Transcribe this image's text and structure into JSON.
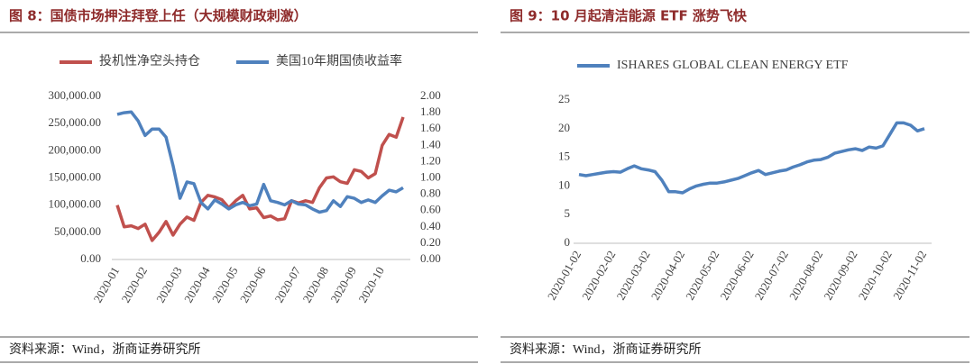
{
  "chart_data": [
    {
      "type": "line",
      "title": "图 8：国债市场押注拜登上任（大规模财政刺激）",
      "source": "资料来源：Wind，浙商证券研究所",
      "legend": "top",
      "categories": [
        "2020-01",
        null,
        null,
        null,
        "2020-02",
        null,
        null,
        null,
        null,
        "2020-03",
        null,
        null,
        null,
        "2020-04",
        null,
        null,
        null,
        "2020-05",
        null,
        null,
        null,
        "2020-06",
        null,
        null,
        null,
        null,
        "2020-07",
        null,
        null,
        null,
        "2020-08",
        null,
        null,
        null,
        "2020-09",
        null,
        null,
        null,
        "2020-10",
        null,
        null,
        null
      ],
      "series": [
        {
          "name": "投机性净空头持仓",
          "color": "#c0504d",
          "axis": "y",
          "values": [
            100000,
            60000,
            62000,
            57000,
            65000,
            35000,
            50000,
            70000,
            45000,
            65000,
            78000,
            72000,
            105000,
            118000,
            115000,
            110000,
            95000,
            108000,
            118000,
            93000,
            95000,
            77000,
            80000,
            73000,
            75000,
            108000,
            104000,
            108000,
            105000,
            132000,
            150000,
            152000,
            143000,
            140000,
            165000,
            162000,
            150000,
            158000,
            210000,
            230000,
            225000,
            262000
          ]
        },
        {
          "name": "美国10年期国债收益率",
          "color": "#4f81bd",
          "axis": "y2",
          "values": [
            1.78,
            1.8,
            1.81,
            1.7,
            1.52,
            1.6,
            1.6,
            1.5,
            1.15,
            0.75,
            0.95,
            0.93,
            0.7,
            0.62,
            0.73,
            0.68,
            0.62,
            0.67,
            0.7,
            0.66,
            0.68,
            0.92,
            0.72,
            0.7,
            0.67,
            0.72,
            0.68,
            0.67,
            0.62,
            0.58,
            0.6,
            0.72,
            0.65,
            0.77,
            0.75,
            0.7,
            0.73,
            0.7,
            0.78,
            0.85,
            0.83,
            0.88
          ]
        }
      ],
      "ylim": [
        0,
        300000
      ],
      "yticks": [
        {
          "value": 0,
          "label": "0.00"
        },
        {
          "value": 50000,
          "label": "50,000.00"
        },
        {
          "value": 100000,
          "label": "100,000.00"
        },
        {
          "value": 150000,
          "label": "150,000.00"
        },
        {
          "value": 200000,
          "label": "200,000.00"
        },
        {
          "value": 250000,
          "label": "250,000.00"
        },
        {
          "value": 300000,
          "label": "300,000.00"
        }
      ],
      "y2lim": [
        0,
        2
      ],
      "y2ticks": [
        {
          "value": 0,
          "label": "0.00"
        },
        {
          "value": 0.2,
          "label": "0.20"
        },
        {
          "value": 0.4,
          "label": "0.40"
        },
        {
          "value": 0.6,
          "label": "0.60"
        },
        {
          "value": 0.8,
          "label": "0.80"
        },
        {
          "value": 1,
          "label": "1.00"
        },
        {
          "value": 1.2,
          "label": "1.20"
        },
        {
          "value": 1.4,
          "label": "1.40"
        },
        {
          "value": 1.6,
          "label": "1.60"
        },
        {
          "value": 1.8,
          "label": "1.80"
        },
        {
          "value": 2,
          "label": "2.00"
        }
      ]
    },
    {
      "type": "line",
      "title": "图 9：10 月起清洁能源 ETF 涨势飞快",
      "source": "资料来源：Wind，浙商证券研究所",
      "legend": "top",
      "categories": [
        "2020-01-02",
        null,
        null,
        null,
        null,
        "2020-02-02",
        null,
        null,
        null,
        null,
        "2020-03-02",
        null,
        null,
        null,
        null,
        "2020-04-02",
        null,
        null,
        null,
        null,
        "2020-05-02",
        null,
        null,
        null,
        null,
        "2020-06-02",
        null,
        null,
        null,
        null,
        "2020-07-02",
        null,
        null,
        null,
        null,
        "2020-08-02",
        null,
        null,
        null,
        null,
        "2020-09-02",
        null,
        null,
        null,
        null,
        "2020-10-02",
        null,
        null,
        null,
        null,
        "2020-11-02"
      ],
      "series": [
        {
          "name": "ISHARES GLOBAL CLEAN ENERGY ETF",
          "color": "#4f81bd",
          "axis": "y",
          "values": [
            12,
            11.8,
            12,
            12.2,
            12.4,
            12.5,
            12.4,
            13,
            13.5,
            13,
            12.8,
            12.5,
            11,
            9,
            9,
            8.8,
            9.5,
            10,
            10.3,
            10.5,
            10.5,
            10.7,
            11,
            11.3,
            11.8,
            12.3,
            12.7,
            12,
            12.3,
            12.6,
            12.8,
            13.3,
            13.7,
            14.2,
            14.5,
            14.6,
            15,
            15.7,
            16,
            16.3,
            16.5,
            16.2,
            16.8,
            16.6,
            17,
            19,
            21,
            21,
            20.6,
            19.6,
            20
          ]
        }
      ],
      "ylim": [
        0,
        25
      ],
      "yticks": [
        0,
        5,
        10,
        15,
        20,
        25
      ]
    }
  ]
}
